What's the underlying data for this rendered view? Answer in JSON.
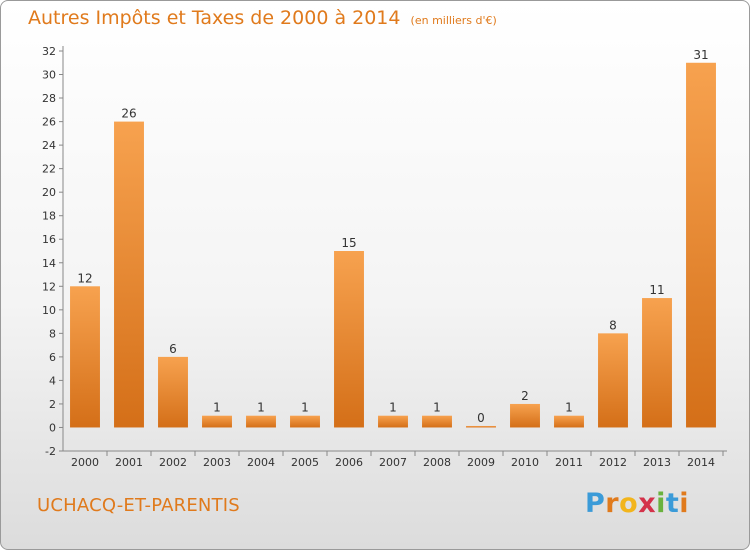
{
  "title": {
    "main": "Autres Impôts et Taxes de 2000 à 2014",
    "unit": "(en milliers d'€)"
  },
  "footer": {
    "commune": "UCHACQ-ET-PARENTIS",
    "logo_letters": [
      "P",
      "r",
      "o",
      "x",
      "i",
      "t",
      "i"
    ]
  },
  "colors": {
    "title": "#e07a1c",
    "bar_light": "#f7a24f",
    "bar_dark": "#d46f18"
  },
  "chart_data": {
    "type": "bar",
    "title": "Autres Impôts et Taxes de 2000 à 2014",
    "subtitle": "(en milliers d'€)",
    "xlabel": "",
    "ylabel": "",
    "categories": [
      "2000",
      "2001",
      "2002",
      "2003",
      "2004",
      "2005",
      "2006",
      "2007",
      "2008",
      "2009",
      "2010",
      "2011",
      "2012",
      "2013",
      "2014"
    ],
    "values": [
      12,
      26,
      6,
      1,
      1,
      1,
      15,
      1,
      1,
      0,
      2,
      1,
      8,
      11,
      31
    ],
    "value_labels": [
      "12",
      "26",
      "6",
      "1",
      "1",
      "1",
      "15",
      "1",
      "1",
      "0",
      "2",
      "1",
      "8",
      "11",
      "31"
    ],
    "ylim": [
      -2,
      32
    ],
    "yticks": [
      -2,
      0,
      2,
      4,
      6,
      8,
      10,
      12,
      14,
      16,
      18,
      20,
      22,
      24,
      26,
      28,
      30,
      32
    ],
    "grid": false,
    "legend": "none"
  }
}
